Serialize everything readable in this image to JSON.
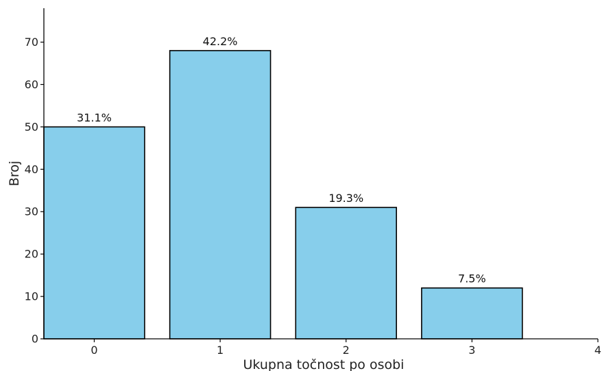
{
  "chart_data": {
    "type": "bar",
    "categories": [
      "0",
      "1",
      "2",
      "3"
    ],
    "values": [
      50,
      68,
      31,
      12
    ],
    "data_labels": [
      "31.1%",
      "42.2%",
      "19.3%",
      "7.5%"
    ],
    "xlabel": "Ukupna točnost po osobi",
    "ylabel": "Broj",
    "xticks": [
      "0",
      "1",
      "2",
      "3",
      "4"
    ],
    "yticks": [
      "0",
      "10",
      "20",
      "30",
      "40",
      "50",
      "60",
      "70"
    ],
    "xlim": [
      -0.4,
      4.0
    ],
    "ylim": [
      0,
      78
    ],
    "grid": false,
    "bar_color": "#87CEEB",
    "edge_color": "#000000"
  }
}
